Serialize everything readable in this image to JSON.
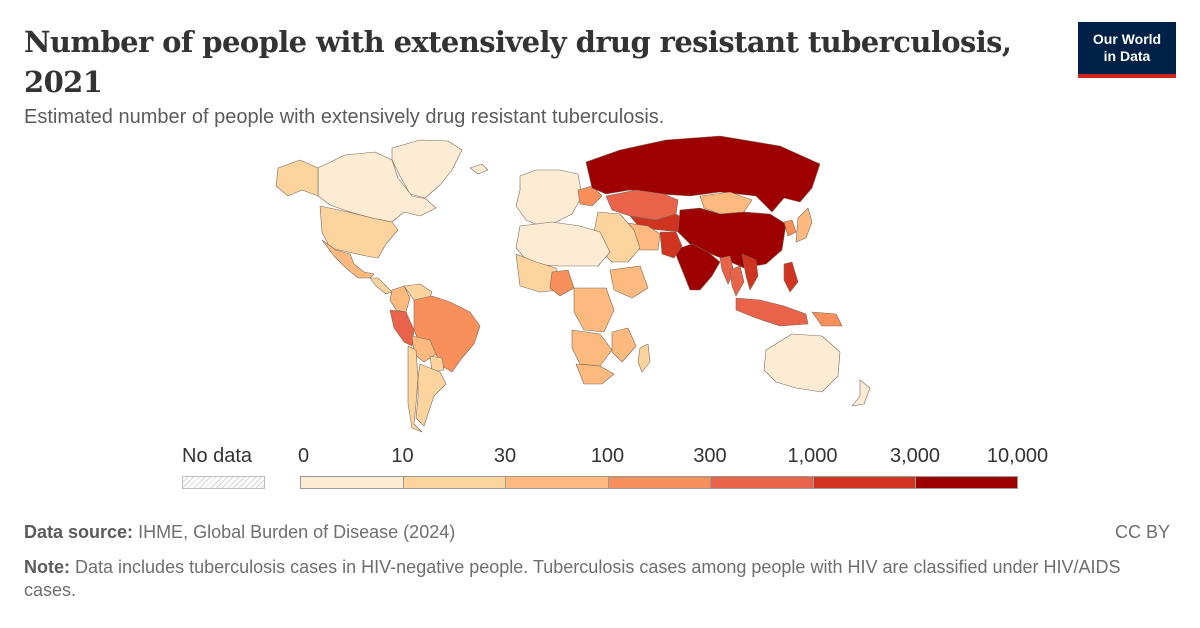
{
  "header": {
    "title": "Number of people with extensively drug resistant tuberculosis, 2021",
    "subtitle": "Estimated number of people with extensively drug resistant tuberculosis."
  },
  "logo": {
    "line1": "Our World",
    "line2": "in Data"
  },
  "legend": {
    "no_data_label": "No data",
    "ticks": [
      "0",
      "10",
      "30",
      "100",
      "300",
      "1,000",
      "3,000",
      "10,000"
    ],
    "colors": [
      "#fdebd4",
      "#fdd49e",
      "#fdb97e",
      "#f98f5b",
      "#e8634a",
      "#d0331f",
      "#9e0000"
    ]
  },
  "footer": {
    "source_label": "Data source:",
    "source_text": "IHME, Global Burden of Disease (2024)",
    "license": "CC BY",
    "note_label": "Note:",
    "note_text": "Data includes tuberculosis cases in HIV-negative people. Tuberculosis cases among people with HIV are classified under HIV/AIDS cases."
  },
  "chart_data": {
    "type": "choropleth",
    "year": 2021,
    "unit": "people",
    "bins": [
      0,
      10,
      30,
      100,
      300,
      1000,
      3000,
      10000
    ],
    "regions": [
      {
        "name": "Greenland",
        "bin": "0-10"
      },
      {
        "name": "Canada",
        "bin": "0-10"
      },
      {
        "name": "Alaska (USA)",
        "bin": "10-30"
      },
      {
        "name": "United States",
        "bin": "10-30"
      },
      {
        "name": "Mexico",
        "bin": "30-100"
      },
      {
        "name": "Central America",
        "bin": "10-30"
      },
      {
        "name": "Colombia",
        "bin": "30-100"
      },
      {
        "name": "Venezuela",
        "bin": "10-30"
      },
      {
        "name": "Brazil",
        "bin": "100-300"
      },
      {
        "name": "Peru",
        "bin": "300-1000"
      },
      {
        "name": "Bolivia",
        "bin": "30-100"
      },
      {
        "name": "Paraguay",
        "bin": "10-30"
      },
      {
        "name": "Argentina",
        "bin": "10-30"
      },
      {
        "name": "Chile",
        "bin": "10-30"
      },
      {
        "name": "Western Europe",
        "bin": "0-10"
      },
      {
        "name": "Iceland",
        "bin": "0-10"
      },
      {
        "name": "Ukraine",
        "bin": "100-300"
      },
      {
        "name": "Russia",
        "bin": "3000-10000"
      },
      {
        "name": "Kazakhstan",
        "bin": "300-1000"
      },
      {
        "name": "Central Asia",
        "bin": "1000-3000"
      },
      {
        "name": "Mongolia",
        "bin": "30-100"
      },
      {
        "name": "China",
        "bin": "3000-10000"
      },
      {
        "name": "India",
        "bin": "3000-10000"
      },
      {
        "name": "Pakistan",
        "bin": "1000-3000"
      },
      {
        "name": "Iran",
        "bin": "30-100"
      },
      {
        "name": "Middle East",
        "bin": "10-30"
      },
      {
        "name": "Myanmar",
        "bin": "300-1000"
      },
      {
        "name": "Thailand",
        "bin": "300-1000"
      },
      {
        "name": "Vietnam",
        "bin": "1000-3000"
      },
      {
        "name": "Philippines",
        "bin": "1000-3000"
      },
      {
        "name": "Indonesia",
        "bin": "300-1000"
      },
      {
        "name": "Papua New Guinea",
        "bin": "100-300"
      },
      {
        "name": "Japan",
        "bin": "30-100"
      },
      {
        "name": "Korea",
        "bin": "100-300"
      },
      {
        "name": "North Africa",
        "bin": "0-10"
      },
      {
        "name": "West Africa",
        "bin": "10-30"
      },
      {
        "name": "Nigeria",
        "bin": "100-300"
      },
      {
        "name": "Ethiopia",
        "bin": "30-100"
      },
      {
        "name": "DR Congo",
        "bin": "30-100"
      },
      {
        "name": "Southern Africa",
        "bin": "30-100"
      },
      {
        "name": "South Africa",
        "bin": "30-100"
      },
      {
        "name": "Mozambique",
        "bin": "30-100"
      },
      {
        "name": "Madagascar",
        "bin": "10-30"
      },
      {
        "name": "Australia",
        "bin": "0-10"
      },
      {
        "name": "New Zealand",
        "bin": "0-10"
      }
    ]
  }
}
